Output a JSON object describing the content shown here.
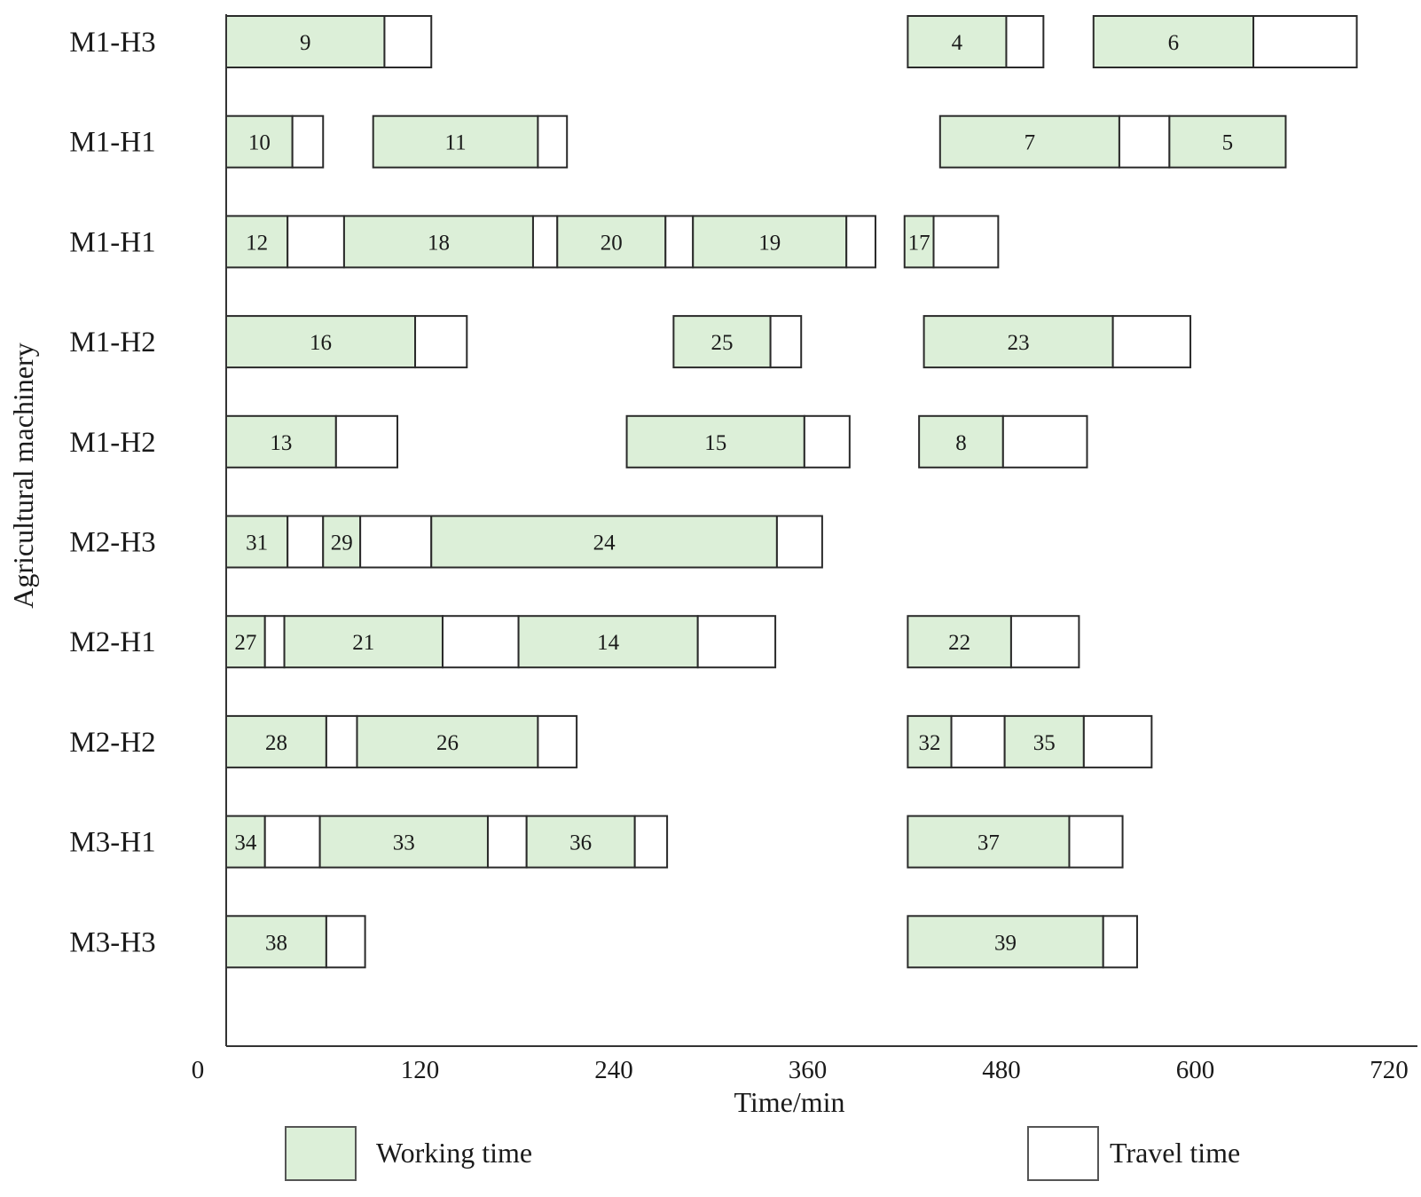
{
  "chart_data": {
    "type": "gantt",
    "xlabel": "Time/min",
    "ylabel": "Agricultural machinery",
    "xlim": [
      0,
      720
    ],
    "xticks": [
      "0",
      "120",
      "240",
      "360",
      "480",
      "600",
      "720"
    ],
    "xtick_values": [
      0,
      120,
      240,
      360,
      480,
      600,
      720
    ],
    "colors": {
      "working": "#dcefd8",
      "travel": "#ffffff",
      "stroke": "#2a2a2a"
    },
    "legend": [
      {
        "key": "working",
        "label": "Working time"
      },
      {
        "key": "travel",
        "label": "Travel time"
      }
    ],
    "rows": [
      {
        "label": "M1-H3",
        "segments": [
          {
            "type": "working",
            "start": 0,
            "end": 98,
            "label": "9"
          },
          {
            "type": "travel",
            "start": 98,
            "end": 127,
            "label": ""
          },
          {
            "type": "working",
            "start": 422,
            "end": 483,
            "label": "4"
          },
          {
            "type": "travel",
            "start": 483,
            "end": 506,
            "label": ""
          },
          {
            "type": "working",
            "start": 537,
            "end": 636,
            "label": "6"
          },
          {
            "type": "travel",
            "start": 636,
            "end": 700,
            "label": ""
          }
        ]
      },
      {
        "label": "M1-H1",
        "segments": [
          {
            "type": "working",
            "start": 0,
            "end": 41,
            "label": "10"
          },
          {
            "type": "travel",
            "start": 41,
            "end": 60,
            "label": ""
          },
          {
            "type": "working",
            "start": 91,
            "end": 193,
            "label": "11"
          },
          {
            "type": "travel",
            "start": 193,
            "end": 211,
            "label": ""
          },
          {
            "type": "working",
            "start": 442,
            "end": 553,
            "label": "7"
          },
          {
            "type": "travel",
            "start": 553,
            "end": 584,
            "label": ""
          },
          {
            "type": "working",
            "start": 584,
            "end": 656,
            "label": "5"
          }
        ]
      },
      {
        "label": "M1-H1",
        "segments": [
          {
            "type": "working",
            "start": 0,
            "end": 38,
            "label": "12"
          },
          {
            "type": "travel",
            "start": 38,
            "end": 73,
            "label": ""
          },
          {
            "type": "working",
            "start": 73,
            "end": 190,
            "label": "18"
          },
          {
            "type": "travel",
            "start": 190,
            "end": 205,
            "label": ""
          },
          {
            "type": "working",
            "start": 205,
            "end": 272,
            "label": "20"
          },
          {
            "type": "travel",
            "start": 272,
            "end": 289,
            "label": ""
          },
          {
            "type": "working",
            "start": 289,
            "end": 384,
            "label": "19"
          },
          {
            "type": "travel",
            "start": 384,
            "end": 402,
            "label": ""
          },
          {
            "type": "working",
            "start": 420,
            "end": 438,
            "label": "17"
          },
          {
            "type": "travel",
            "start": 438,
            "end": 478,
            "label": ""
          }
        ]
      },
      {
        "label": "M1-H2",
        "segments": [
          {
            "type": "working",
            "start": 0,
            "end": 117,
            "label": "16"
          },
          {
            "type": "travel",
            "start": 117,
            "end": 149,
            "label": ""
          },
          {
            "type": "working",
            "start": 277,
            "end": 337,
            "label": "25"
          },
          {
            "type": "travel",
            "start": 337,
            "end": 356,
            "label": ""
          },
          {
            "type": "working",
            "start": 432,
            "end": 549,
            "label": "23"
          },
          {
            "type": "travel",
            "start": 549,
            "end": 597,
            "label": ""
          }
        ]
      },
      {
        "label": "M1-H2",
        "segments": [
          {
            "type": "working",
            "start": 0,
            "end": 68,
            "label": "13"
          },
          {
            "type": "travel",
            "start": 68,
            "end": 106,
            "label": ""
          },
          {
            "type": "working",
            "start": 248,
            "end": 358,
            "label": "15"
          },
          {
            "type": "travel",
            "start": 358,
            "end": 386,
            "label": ""
          },
          {
            "type": "working",
            "start": 429,
            "end": 481,
            "label": "8"
          },
          {
            "type": "travel",
            "start": 481,
            "end": 533,
            "label": ""
          }
        ]
      },
      {
        "label": "M2-H3",
        "segments": [
          {
            "type": "working",
            "start": 0,
            "end": 38,
            "label": "31"
          },
          {
            "type": "travel",
            "start": 38,
            "end": 60,
            "label": ""
          },
          {
            "type": "working",
            "start": 60,
            "end": 83,
            "label": "29"
          },
          {
            "type": "travel",
            "start": 83,
            "end": 127,
            "label": ""
          },
          {
            "type": "working",
            "start": 127,
            "end": 341,
            "label": "24"
          },
          {
            "type": "travel",
            "start": 341,
            "end": 369,
            "label": ""
          }
        ]
      },
      {
        "label": "M2-H1",
        "segments": [
          {
            "type": "working",
            "start": 0,
            "end": 24,
            "label": "27"
          },
          {
            "type": "travel",
            "start": 24,
            "end": 36,
            "label": ""
          },
          {
            "type": "working",
            "start": 36,
            "end": 134,
            "label": "21"
          },
          {
            "type": "travel",
            "start": 134,
            "end": 181,
            "label": ""
          },
          {
            "type": "working",
            "start": 181,
            "end": 292,
            "label": "14"
          },
          {
            "type": "travel",
            "start": 292,
            "end": 340,
            "label": ""
          },
          {
            "type": "working",
            "start": 422,
            "end": 486,
            "label": "22"
          },
          {
            "type": "travel",
            "start": 486,
            "end": 528,
            "label": ""
          }
        ]
      },
      {
        "label": "M2-H2",
        "segments": [
          {
            "type": "working",
            "start": 0,
            "end": 62,
            "label": "28"
          },
          {
            "type": "travel",
            "start": 62,
            "end": 81,
            "label": ""
          },
          {
            "type": "working",
            "start": 81,
            "end": 193,
            "label": "26"
          },
          {
            "type": "travel",
            "start": 193,
            "end": 217,
            "label": ""
          },
          {
            "type": "working",
            "start": 422,
            "end": 449,
            "label": "32"
          },
          {
            "type": "travel",
            "start": 449,
            "end": 482,
            "label": ""
          },
          {
            "type": "working",
            "start": 482,
            "end": 531,
            "label": "35"
          },
          {
            "type": "travel",
            "start": 531,
            "end": 573,
            "label": ""
          }
        ]
      },
      {
        "label": "M3-H1",
        "segments": [
          {
            "type": "working",
            "start": 0,
            "end": 24,
            "label": "34"
          },
          {
            "type": "travel",
            "start": 24,
            "end": 58,
            "label": ""
          },
          {
            "type": "working",
            "start": 58,
            "end": 162,
            "label": "33"
          },
          {
            "type": "travel",
            "start": 162,
            "end": 186,
            "label": ""
          },
          {
            "type": "working",
            "start": 186,
            "end": 253,
            "label": "36"
          },
          {
            "type": "travel",
            "start": 253,
            "end": 273,
            "label": ""
          },
          {
            "type": "working",
            "start": 422,
            "end": 522,
            "label": "37"
          },
          {
            "type": "travel",
            "start": 522,
            "end": 555,
            "label": ""
          }
        ]
      },
      {
        "label": "M3-H3",
        "segments": [
          {
            "type": "working",
            "start": 0,
            "end": 62,
            "label": "38"
          },
          {
            "type": "travel",
            "start": 62,
            "end": 86,
            "label": ""
          },
          {
            "type": "working",
            "start": 422,
            "end": 543,
            "label": "39"
          },
          {
            "type": "travel",
            "start": 543,
            "end": 564,
            "label": ""
          }
        ]
      }
    ]
  }
}
